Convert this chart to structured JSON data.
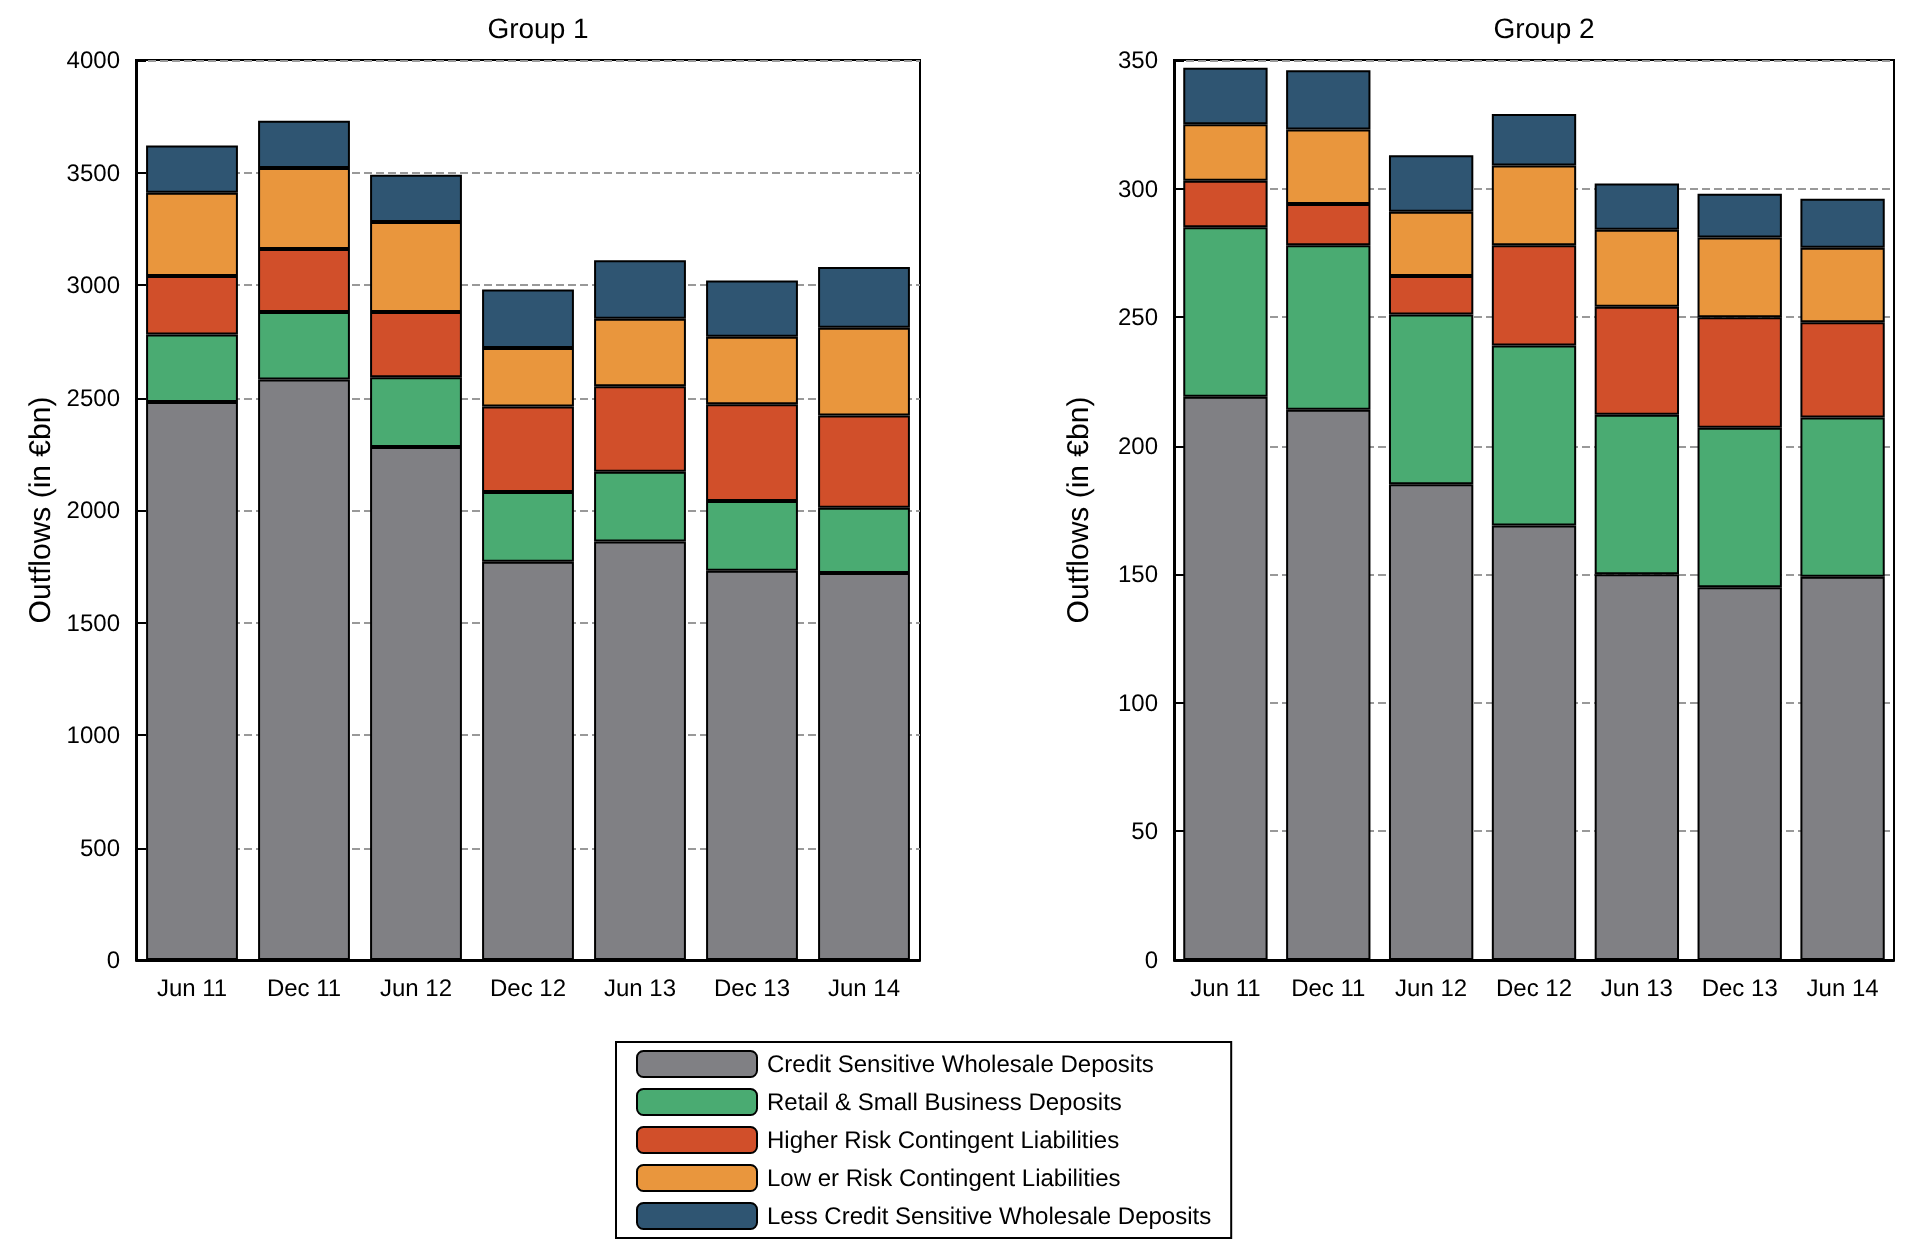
{
  "chart_data": [
    {
      "type": "bar",
      "title": "Group 1",
      "ylabel": "Outflows (in €bn)",
      "stacked": true,
      "grid": "y",
      "legend": "bottom",
      "ylim": [
        0,
        4000
      ],
      "yticks": [
        0,
        500,
        1000,
        1500,
        2000,
        2500,
        3000,
        3500,
        4000
      ],
      "categories": [
        "Jun 11",
        "Dec 11",
        "Jun 12",
        "Dec 12",
        "Jun 13",
        "Dec 13",
        "Jun 14"
      ],
      "series": [
        {
          "name": "Credit Sensitive Wholesale Deposits",
          "color": "#808084",
          "values": [
            2480,
            2580,
            2280,
            1770,
            1860,
            1730,
            1720
          ]
        },
        {
          "name": "Retail & Small Business Deposits",
          "color": "#4aab72",
          "values": [
            300,
            300,
            310,
            310,
            310,
            310,
            290
          ]
        },
        {
          "name": "Higher Risk Contingent Liabilities",
          "color": "#d14f2a",
          "values": [
            260,
            280,
            290,
            380,
            380,
            430,
            410
          ]
        },
        {
          "name": "Low er Risk Contingent Liabilities",
          "color": "#e9963d",
          "values": [
            370,
            360,
            400,
            260,
            300,
            300,
            390
          ]
        },
        {
          "name": "Less Credit Sensitive Wholesale Deposits",
          "color": "#2f5572",
          "values": [
            210,
            210,
            210,
            260,
            260,
            250,
            270
          ]
        }
      ]
    },
    {
      "type": "bar",
      "title": "Group 2",
      "ylabel": "Outflows (in €bn)",
      "stacked": true,
      "grid": "y",
      "legend": false,
      "ylim": [
        0,
        350
      ],
      "yticks": [
        0,
        50,
        100,
        150,
        200,
        250,
        300,
        350
      ],
      "categories": [
        "Jun 11",
        "Dec 11",
        "Jun 12",
        "Dec 12",
        "Jun 13",
        "Dec 13",
        "Jun 14"
      ],
      "series": [
        {
          "color": "#808084",
          "values": [
            219,
            214,
            185,
            169,
            150,
            145,
            149
          ]
        },
        {
          "color": "#4aab72",
          "values": [
            66,
            64,
            66,
            70,
            62,
            62,
            62
          ]
        },
        {
          "color": "#d14f2a",
          "values": [
            18,
            16,
            15,
            39,
            42,
            43,
            37
          ]
        },
        {
          "color": "#e9963d",
          "values": [
            22,
            29,
            25,
            31,
            30,
            31,
            29
          ]
        },
        {
          "color": "#2f5572",
          "values": [
            22,
            23,
            22,
            20,
            18,
            17,
            19
          ]
        }
      ]
    }
  ]
}
